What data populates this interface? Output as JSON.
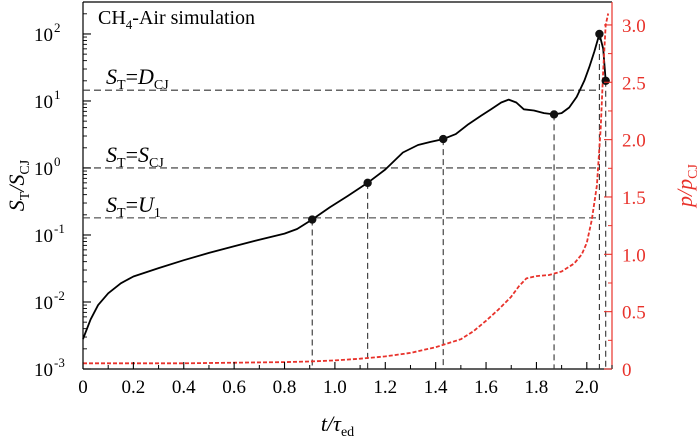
{
  "chart_data": {
    "type": "line",
    "title": "CH4-Air simulation",
    "xlabel": "t/τ_ed",
    "ylabel_left": "S_T/S_CJ",
    "ylabel_right": "p/p_CJ",
    "xlim": [
      0,
      2.1
    ],
    "ylim_left": [
      0.001,
      300
    ],
    "ylim_left_scale": "log",
    "ylim_right": [
      0,
      3.2
    ],
    "grid": false,
    "colors": {
      "left_axis": "#000000",
      "right_axis": "#e8322b",
      "flame_speed_line": "#000000",
      "pressure_line": "#e8322b",
      "reference_lines": "#333333"
    },
    "x_ticks": [
      "0",
      "0.2",
      "0.4",
      "0.6",
      "0.8",
      "1.0",
      "1.2",
      "1.4",
      "1.6",
      "1.8",
      "2.0"
    ],
    "x_tick_values": [
      0,
      0.2,
      0.4,
      0.6,
      0.8,
      1.0,
      1.2,
      1.4,
      1.6,
      1.8,
      2.0
    ],
    "y_left_ticks": [
      {
        "value": 0.001,
        "base": "10",
        "exp": "-3"
      },
      {
        "value": 0.01,
        "base": "10",
        "exp": "-2"
      },
      {
        "value": 0.1,
        "base": "10",
        "exp": "-1"
      },
      {
        "value": 1,
        "base": "10",
        "exp": "0"
      },
      {
        "value": 10,
        "base": "10",
        "exp": "1"
      },
      {
        "value": 100,
        "base": "10",
        "exp": "2"
      }
    ],
    "y_right_ticks": [
      "0",
      "0.5",
      "1.0",
      "1.5",
      "2.0",
      "2.5",
      "3.0"
    ],
    "y_right_tick_values": [
      0,
      0.5,
      1.0,
      1.5,
      2.0,
      2.5,
      3.0
    ],
    "series": [
      {
        "name": "S_T/S_CJ",
        "axis": "left",
        "style": "solid",
        "x": [
          0,
          0.03,
          0.06,
          0.1,
          0.15,
          0.2,
          0.3,
          0.4,
          0.5,
          0.6,
          0.7,
          0.8,
          0.85,
          0.91,
          0.98,
          1.05,
          1.13,
          1.2,
          1.27,
          1.33,
          1.38,
          1.43,
          1.48,
          1.53,
          1.58,
          1.62,
          1.66,
          1.69,
          1.72,
          1.75,
          1.79,
          1.83,
          1.87,
          1.9,
          1.93,
          1.96,
          1.99,
          2.01,
          2.03,
          2.05,
          2.065,
          2.075
        ],
        "values": [
          0.0028,
          0.0055,
          0.009,
          0.0135,
          0.019,
          0.024,
          0.032,
          0.042,
          0.054,
          0.068,
          0.085,
          0.105,
          0.123,
          0.17,
          0.26,
          0.38,
          0.6,
          0.95,
          1.7,
          2.2,
          2.45,
          2.7,
          3.2,
          4.5,
          6.0,
          7.5,
          9.5,
          10.5,
          9.5,
          7.5,
          7.2,
          6.6,
          6.3,
          6.6,
          8.0,
          11.5,
          20,
          32,
          55,
          100,
          60,
          20
        ]
      },
      {
        "name": "p/p_CJ",
        "axis": "right",
        "style": "dashed",
        "x": [
          0,
          0.2,
          0.4,
          0.6,
          0.8,
          0.9,
          1.0,
          1.1,
          1.2,
          1.3,
          1.4,
          1.5,
          1.55,
          1.6,
          1.65,
          1.7,
          1.73,
          1.76,
          1.8,
          1.85,
          1.9,
          1.95,
          1.98,
          2.0,
          2.02,
          2.04,
          2.055,
          2.065,
          2.075,
          2.085
        ],
        "values": [
          0.05,
          0.05,
          0.05,
          0.055,
          0.06,
          0.065,
          0.075,
          0.09,
          0.11,
          0.14,
          0.19,
          0.26,
          0.33,
          0.42,
          0.52,
          0.63,
          0.72,
          0.79,
          0.81,
          0.82,
          0.85,
          0.92,
          1.0,
          1.1,
          1.3,
          1.6,
          2.1,
          2.6,
          3.0,
          3.1
        ]
      }
    ],
    "markers": [
      {
        "x": 0.91,
        "y": 0.17
      },
      {
        "x": 1.13,
        "y": 0.6
      },
      {
        "x": 1.43,
        "y": 2.7
      },
      {
        "x": 1.87,
        "y": 6.3
      },
      {
        "x": 2.05,
        "y": 100
      },
      {
        "x": 2.075,
        "y": 20
      }
    ],
    "reference_lines": [
      {
        "y": 14.5,
        "label_main": "S",
        "label_sub1": "T",
        "label_eq": "=D",
        "label_sub2": "CJ"
      },
      {
        "y": 1.0,
        "label_main": "S",
        "label_sub1": "T",
        "label_eq": "=S",
        "label_sub2": "CJ"
      },
      {
        "y": 0.18,
        "label_main": "S",
        "label_sub1": "T",
        "label_eq": "=U",
        "label_sub2": "1"
      }
    ]
  }
}
